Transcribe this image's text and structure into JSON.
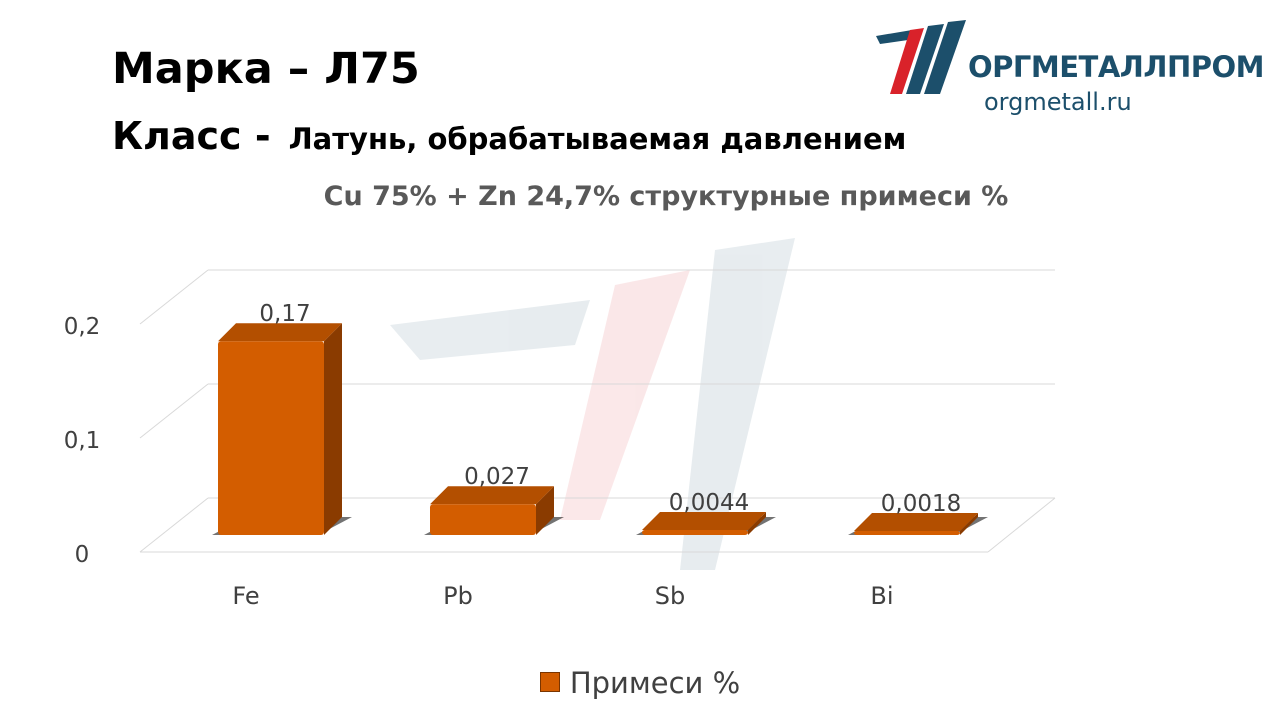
{
  "header": {
    "marka": "Марка – Л75",
    "klass_label": "Класс -",
    "klass_value": "Латунь, обрабатываемая давлением"
  },
  "logo": {
    "name": "ОРГМЕТАЛЛПРОМ",
    "url": "orgmetall.ru",
    "colors": {
      "primary": "#1c4f6b",
      "accent": "#d9222a"
    }
  },
  "chart_data": {
    "type": "bar",
    "title": "Cu 75% + Zn 24,7% структурные примеси %",
    "categories": [
      "Fe",
      "Pb",
      "Sb",
      "Bi"
    ],
    "series": [
      {
        "name": "Примеси %",
        "values": [
          0.17,
          0.027,
          0.0044,
          0.0018
        ],
        "labels": [
          "0,17",
          "0,027",
          "0,0044",
          "0,0018"
        ],
        "color": "#d35d00"
      }
    ],
    "yticks": [
      "0",
      "0,1",
      "0,2"
    ],
    "ylim": [
      0,
      0.2
    ],
    "grid": true,
    "three_d": true,
    "legend": "bottom"
  }
}
